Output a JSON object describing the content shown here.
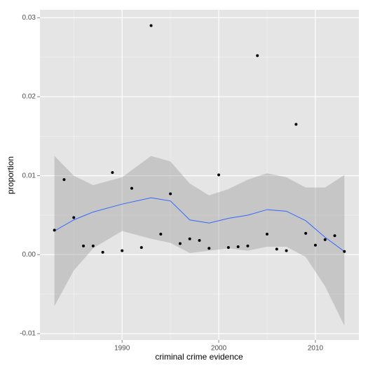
{
  "chart_data": {
    "type": "scatter",
    "x_label": "criminal crime evidence",
    "y_label": "proportion",
    "x": [
      1983,
      1984,
      1985,
      1986,
      1987,
      1988,
      1989,
      1990,
      1991,
      1992,
      1993,
      1994,
      1995,
      1996,
      1997,
      1998,
      1999,
      2000,
      2001,
      2002,
      2003,
      2004,
      2005,
      2006,
      2007,
      2008,
      2009,
      2010,
      2011,
      2012,
      2013
    ],
    "values": [
      0.0031,
      0.0095,
      0.0047,
      0.0011,
      0.0011,
      0.0003,
      0.0104,
      0.0005,
      0.0084,
      0.0009,
      0.029,
      0.0026,
      0.0077,
      0.0014,
      0.002,
      0.0018,
      0.0008,
      0.0101,
      0.0009,
      0.001,
      0.0011,
      0.0252,
      0.0026,
      0.0007,
      0.0005,
      0.0165,
      0.0027,
      0.0012,
      0.0019,
      0.0024,
      0.0004
    ],
    "color": "#000000",
    "smooth": {
      "x": [
        1983,
        1985,
        1987,
        1990,
        1993,
        1995,
        1997,
        1999,
        2001,
        2003,
        2005,
        2007,
        2009,
        2011,
        2013
      ],
      "values": [
        0.003,
        0.0044,
        0.0054,
        0.0064,
        0.0072,
        0.0068,
        0.0044,
        0.004,
        0.0046,
        0.005,
        0.0057,
        0.0055,
        0.0043,
        0.0022,
        0.0004
      ],
      "lower": [
        -0.0065,
        -0.002,
        0.0008,
        0.003,
        0.002,
        0.0015,
        0.0002,
        0.0005,
        0.0008,
        0.0005,
        0.001,
        0.001,
        -0.0003,
        -0.004,
        -0.009
      ],
      "upper": [
        0.0125,
        0.01,
        0.0088,
        0.0098,
        0.0125,
        0.0118,
        0.009,
        0.0075,
        0.0083,
        0.0095,
        0.0103,
        0.0098,
        0.0085,
        0.0085,
        0.0101
      ],
      "color": "#3366ff",
      "band_color": "#999999"
    },
    "xlim": [
      1981.5,
      2014.5
    ],
    "ylim": [
      -0.0108,
      0.031
    ],
    "xticks": [
      1990,
      2000,
      2010
    ],
    "minor_xticks": [
      1985,
      1995,
      2005
    ],
    "yticks": [
      -0.01,
      {
        "value": 0,
        "label": "0.00"
      },
      0.01,
      0.02,
      0.03
    ],
    "minor_yticks": [
      -0.005,
      0.005,
      0.015,
      0.025
    ],
    "grid": true
  }
}
